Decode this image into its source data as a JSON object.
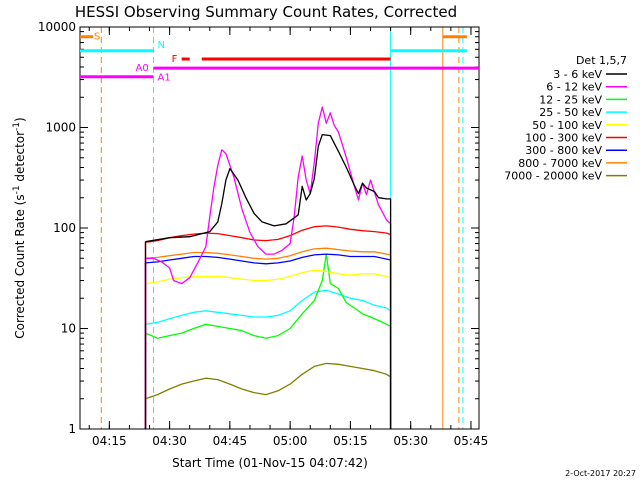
{
  "chart_data": {
    "type": "line",
    "title": "HESSI Observing Summary Count Rates, Corrected",
    "xlabel": "Start Time (01-Nov-15 04:07:42)",
    "ylabel": "Corrected Count Rate (s-1 detector-1)",
    "ylabel_parts": [
      "Corrected Count Rate (s",
      "-1",
      " detector",
      "-1",
      ")"
    ],
    "y_scale": "log",
    "ylim": [
      1,
      10000
    ],
    "xlim": [
      "04:07:42",
      "05:47:00"
    ],
    "x_ticks": [
      "04:15",
      "04:30",
      "04:45",
      "05:00",
      "05:15",
      "05:30",
      "05:45"
    ],
    "y_ticks": [
      "1",
      "10",
      "100",
      "1000",
      "10000"
    ],
    "grid": false,
    "legend_title": "Det 1,5,7",
    "legend_position": "right",
    "date_stamp": "2-Oct-2017 20:27",
    "series": [
      {
        "name": "3 - 6 keV",
        "color": "#000000",
        "points": [
          [
            "04:24",
            73
          ],
          [
            "04:30",
            80
          ],
          [
            "04:35",
            82
          ],
          [
            "04:40",
            92
          ],
          [
            "04:42",
            115
          ],
          [
            "04:43",
            175
          ],
          [
            "04:44",
            300
          ],
          [
            "04:45",
            390
          ],
          [
            "04:47",
            300
          ],
          [
            "04:49",
            200
          ],
          [
            "04:51",
            140
          ],
          [
            "04:53",
            115
          ],
          [
            "04:56",
            105
          ],
          [
            "04:59",
            110
          ],
          [
            "05:02",
            135
          ],
          [
            "05:03",
            260
          ],
          [
            "05:04",
            190
          ],
          [
            "05:05",
            220
          ],
          [
            "05:06",
            310
          ],
          [
            "05:07",
            650
          ],
          [
            "05:08",
            850
          ],
          [
            "05:10",
            830
          ],
          [
            "05:12",
            580
          ],
          [
            "05:14",
            400
          ],
          [
            "05:16",
            265
          ],
          [
            "05:17",
            220
          ],
          [
            "05:18",
            280
          ],
          [
            "05:19",
            250
          ],
          [
            "05:21",
            230
          ],
          [
            "05:22",
            200
          ],
          [
            "05:24",
            195
          ],
          [
            "05:25",
            195
          ]
        ]
      },
      {
        "name": "6 - 12 keV",
        "color": "#ff00ff",
        "points": [
          [
            "04:24",
            50
          ],
          [
            "04:26",
            50
          ],
          [
            "04:28",
            46
          ],
          [
            "04:30",
            40
          ],
          [
            "04:31",
            30
          ],
          [
            "04:33",
            28
          ],
          [
            "04:35",
            32
          ],
          [
            "04:37",
            45
          ],
          [
            "04:39",
            65
          ],
          [
            "04:40",
            130
          ],
          [
            "04:41",
            250
          ],
          [
            "04:42",
            420
          ],
          [
            "04:43",
            600
          ],
          [
            "04:44",
            550
          ],
          [
            "04:46",
            320
          ],
          [
            "04:48",
            155
          ],
          [
            "04:50",
            90
          ],
          [
            "04:52",
            65
          ],
          [
            "04:54",
            55
          ],
          [
            "04:56",
            55
          ],
          [
            "04:58",
            60
          ],
          [
            "05:00",
            70
          ],
          [
            "05:01",
            130
          ],
          [
            "05:02",
            320
          ],
          [
            "05:03",
            520
          ],
          [
            "05:04",
            300
          ],
          [
            "05:05",
            220
          ],
          [
            "05:06",
            450
          ],
          [
            "05:07",
            1100
          ],
          [
            "05:08",
            1600
          ],
          [
            "05:09",
            1100
          ],
          [
            "05:10",
            1400
          ],
          [
            "05:11",
            1050
          ],
          [
            "05:12",
            900
          ],
          [
            "05:14",
            500
          ],
          [
            "05:16",
            260
          ],
          [
            "05:17",
            190
          ],
          [
            "05:18",
            280
          ],
          [
            "05:19",
            215
          ],
          [
            "05:20",
            300
          ],
          [
            "05:22",
            170
          ],
          [
            "05:24",
            120
          ],
          [
            "05:25",
            110
          ]
        ]
      },
      {
        "name": "12 - 25 keV",
        "color": "#00ff00",
        "points": [
          [
            "04:24",
            9
          ],
          [
            "04:27",
            8
          ],
          [
            "04:30",
            8.5
          ],
          [
            "04:33",
            9
          ],
          [
            "04:36",
            10
          ],
          [
            "04:39",
            11
          ],
          [
            "04:42",
            10.5
          ],
          [
            "04:45",
            10
          ],
          [
            "04:48",
            9.5
          ],
          [
            "04:51",
            8.5
          ],
          [
            "04:54",
            8
          ],
          [
            "04:57",
            8.5
          ],
          [
            "05:00",
            10
          ],
          [
            "05:03",
            14
          ],
          [
            "05:06",
            19
          ],
          [
            "05:08",
            30
          ],
          [
            "05:09",
            55
          ],
          [
            "05:10",
            28
          ],
          [
            "05:12",
            25
          ],
          [
            "05:14",
            18
          ],
          [
            "05:16",
            16
          ],
          [
            "05:18",
            14
          ],
          [
            "05:20",
            13
          ],
          [
            "05:22",
            12
          ],
          [
            "05:24",
            11
          ],
          [
            "05:25",
            10.5
          ]
        ]
      },
      {
        "name": "25 - 50 keV",
        "color": "#00ffff",
        "points": [
          [
            "04:24",
            11
          ],
          [
            "04:27",
            11.5
          ],
          [
            "04:30",
            12.5
          ],
          [
            "04:33",
            13.5
          ],
          [
            "04:36",
            14.5
          ],
          [
            "04:39",
            15
          ],
          [
            "04:42",
            14.5
          ],
          [
            "04:45",
            14
          ],
          [
            "04:48",
            13.5
          ],
          [
            "04:51",
            13
          ],
          [
            "04:54",
            13
          ],
          [
            "04:57",
            13.5
          ],
          [
            "05:00",
            15
          ],
          [
            "05:03",
            19
          ],
          [
            "05:06",
            23
          ],
          [
            "05:09",
            24
          ],
          [
            "05:12",
            22
          ],
          [
            "05:15",
            20
          ],
          [
            "05:18",
            19
          ],
          [
            "05:21",
            17
          ],
          [
            "05:24",
            16
          ],
          [
            "05:25",
            15
          ]
        ]
      },
      {
        "name": "50 - 100 keV",
        "color": "#ffff00",
        "points": [
          [
            "04:24",
            28
          ],
          [
            "04:27",
            29
          ],
          [
            "04:30",
            31
          ],
          [
            "04:33",
            32
          ],
          [
            "04:36",
            33
          ],
          [
            "04:39",
            33
          ],
          [
            "04:42",
            33
          ],
          [
            "04:45",
            32
          ],
          [
            "04:48",
            31
          ],
          [
            "04:51",
            30
          ],
          [
            "04:54",
            30
          ],
          [
            "04:57",
            31
          ],
          [
            "05:00",
            33
          ],
          [
            "05:03",
            36
          ],
          [
            "05:06",
            38
          ],
          [
            "05:09",
            37
          ],
          [
            "05:12",
            35
          ],
          [
            "05:15",
            34
          ],
          [
            "05:18",
            35
          ],
          [
            "05:21",
            35
          ],
          [
            "05:24",
            33
          ],
          [
            "05:25",
            32
          ]
        ]
      },
      {
        "name": "100 - 300 keV",
        "color": "#ff0000",
        "points": [
          [
            "04:24",
            72
          ],
          [
            "04:27",
            75
          ],
          [
            "04:30",
            80
          ],
          [
            "04:33",
            84
          ],
          [
            "04:36",
            87
          ],
          [
            "04:39",
            89
          ],
          [
            "04:42",
            88
          ],
          [
            "04:45",
            84
          ],
          [
            "04:48",
            80
          ],
          [
            "04:51",
            76
          ],
          [
            "04:54",
            75
          ],
          [
            "04:57",
            77
          ],
          [
            "05:00",
            84
          ],
          [
            "05:03",
            95
          ],
          [
            "05:06",
            103
          ],
          [
            "05:09",
            105
          ],
          [
            "05:12",
            102
          ],
          [
            "05:15",
            97
          ],
          [
            "05:18",
            94
          ],
          [
            "05:21",
            92
          ],
          [
            "05:24",
            89
          ],
          [
            "05:25",
            86
          ]
        ]
      },
      {
        "name": "300 - 800 keV",
        "color": "#0000ff",
        "points": [
          [
            "04:24",
            45
          ],
          [
            "04:27",
            46
          ],
          [
            "04:30",
            48
          ],
          [
            "04:33",
            50
          ],
          [
            "04:36",
            52
          ],
          [
            "04:39",
            52
          ],
          [
            "04:42",
            51
          ],
          [
            "04:45",
            49
          ],
          [
            "04:48",
            47
          ],
          [
            "04:51",
            45
          ],
          [
            "04:54",
            44
          ],
          [
            "04:57",
            45
          ],
          [
            "05:00",
            47
          ],
          [
            "05:03",
            51
          ],
          [
            "05:06",
            54
          ],
          [
            "05:09",
            55
          ],
          [
            "05:12",
            54
          ],
          [
            "05:15",
            52
          ],
          [
            "05:18",
            52
          ],
          [
            "05:21",
            52
          ],
          [
            "05:24",
            49
          ],
          [
            "05:25",
            48
          ]
        ]
      },
      {
        "name": "800 - 7000 keV",
        "color": "#ff8000",
        "points": [
          [
            "04:24",
            50
          ],
          [
            "04:27",
            51
          ],
          [
            "04:30",
            53
          ],
          [
            "04:33",
            55
          ],
          [
            "04:36",
            57
          ],
          [
            "04:39",
            57
          ],
          [
            "04:42",
            56
          ],
          [
            "04:45",
            54
          ],
          [
            "04:48",
            52
          ],
          [
            "04:51",
            50
          ],
          [
            "04:54",
            49
          ],
          [
            "04:57",
            50
          ],
          [
            "05:00",
            53
          ],
          [
            "05:03",
            58
          ],
          [
            "05:06",
            62
          ],
          [
            "05:09",
            63
          ],
          [
            "05:12",
            61
          ],
          [
            "05:15",
            59
          ],
          [
            "05:18",
            58
          ],
          [
            "05:21",
            58
          ],
          [
            "05:24",
            55
          ],
          [
            "05:25",
            54
          ]
        ]
      },
      {
        "name": "7000 - 20000 keV",
        "color": "#808000",
        "points": [
          [
            "04:24",
            2
          ],
          [
            "04:27",
            2.2
          ],
          [
            "04:30",
            2.5
          ],
          [
            "04:33",
            2.8
          ],
          [
            "04:36",
            3
          ],
          [
            "04:39",
            3.2
          ],
          [
            "04:42",
            3.1
          ],
          [
            "04:45",
            2.8
          ],
          [
            "04:48",
            2.5
          ],
          [
            "04:51",
            2.3
          ],
          [
            "04:54",
            2.2
          ],
          [
            "04:57",
            2.4
          ],
          [
            "05:00",
            2.8
          ],
          [
            "05:03",
            3.5
          ],
          [
            "05:06",
            4.2
          ],
          [
            "05:09",
            4.5
          ],
          [
            "05:12",
            4.4
          ],
          [
            "05:15",
            4.2
          ],
          [
            "05:18",
            4
          ],
          [
            "05:21",
            3.8
          ],
          [
            "05:24",
            3.5
          ],
          [
            "05:25",
            3.3
          ]
        ]
      }
    ],
    "flag_bars": [
      {
        "label": "S",
        "color": "#ff8000",
        "level": 8000,
        "segments": [
          [
            "04:07:42",
            "04:11"
          ],
          [
            "05:38",
            "05:44"
          ]
        ]
      },
      {
        "label": "N",
        "color": "#00ffff",
        "level": 5800,
        "segments": [
          [
            "04:07:42",
            "04:26"
          ],
          [
            "05:25",
            "05:44"
          ]
        ]
      },
      {
        "label": "F",
        "color": "#ff0000",
        "level": 4800,
        "segments": [
          [
            "04:33",
            "04:35"
          ],
          [
            "04:38",
            "05:25"
          ]
        ]
      },
      {
        "label": "A0",
        "color": "#ff00ff",
        "level": 3900,
        "segments": [
          [
            "04:26",
            "05:47"
          ]
        ]
      },
      {
        "label": "A1",
        "color": "#ff00ff",
        "level": 3200,
        "segments": [
          [
            "04:07:42",
            "04:26"
          ]
        ]
      }
    ],
    "vertical_lines": [
      {
        "time": "04:07:42",
        "color": "#00ffff",
        "style": "solid"
      },
      {
        "time": "04:13",
        "color": "#ff8000",
        "style": "dashed"
      },
      {
        "time": "04:26",
        "color": "#00ffff",
        "style": "dashed"
      },
      {
        "time": "05:25",
        "color": "#00ffff",
        "style": "solid"
      },
      {
        "time": "05:38",
        "color": "#ff8000",
        "style": "solid"
      },
      {
        "time": "05:42",
        "color": "#ff8000",
        "style": "dashed"
      },
      {
        "time": "05:43",
        "color": "#00ffff",
        "style": "dashed"
      }
    ]
  }
}
